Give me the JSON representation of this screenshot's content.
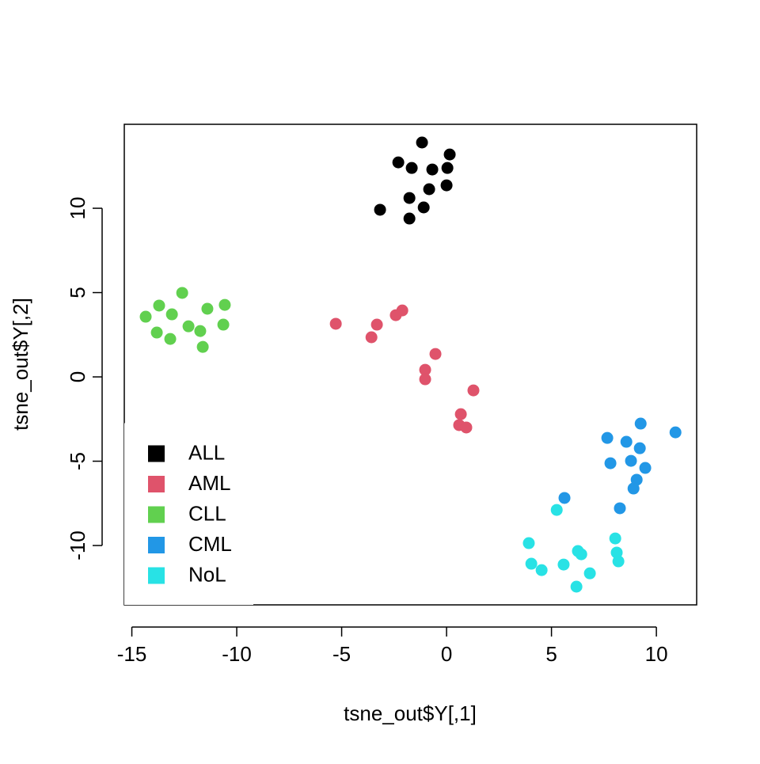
{
  "chart_data": {
    "type": "scatter",
    "x_label": "tsne_out$Y[,1]",
    "y_label": "tsne_out$Y[,2]",
    "xlim": [
      -15.36,
      11.92
    ],
    "ylim": [
      -13.52,
      14.98
    ],
    "xticks": [
      -15,
      -10,
      -5,
      0,
      5,
      10
    ],
    "yticks": [
      -10,
      -5,
      0,
      5,
      10
    ],
    "legend": "bottomleft",
    "series": [
      {
        "name": "ALL",
        "color": "#000000",
        "x": [
          -1.17,
          0.15,
          -2.3,
          -1.66,
          -0.68,
          0.04,
          0.0,
          -0.83,
          -1.77,
          -1.09,
          -3.17,
          -1.77
        ],
        "values": [
          13.9,
          13.19,
          12.72,
          12.39,
          12.3,
          12.39,
          11.36,
          11.13,
          10.61,
          10.05,
          9.91,
          9.39
        ]
      },
      {
        "name": "AML",
        "color": "#DF536B",
        "x": [
          -5.28,
          -3.32,
          -3.58,
          -2.11,
          -2.42,
          -0.53,
          -1.02,
          -1.02,
          1.28,
          0.68,
          0.6,
          0.94
        ],
        "values": [
          3.15,
          3.1,
          2.35,
          3.94,
          3.66,
          1.36,
          0.42,
          -0.14,
          -0.8,
          -2.21,
          -2.86,
          -3.0
        ]
      },
      {
        "name": "CLL",
        "color": "#61D04F",
        "x": [
          -12.6,
          -13.7,
          -10.57,
          -11.4,
          -14.34,
          -13.09,
          -12.3,
          -10.64,
          -13.81,
          -11.74,
          -13.17,
          -11.62
        ],
        "values": [
          4.98,
          4.23,
          4.27,
          4.04,
          3.57,
          3.71,
          3.0,
          3.1,
          2.63,
          2.72,
          2.25,
          1.78
        ]
      },
      {
        "name": "CML",
        "color": "#2297E6",
        "x": [
          9.25,
          10.91,
          7.66,
          8.57,
          9.21,
          7.81,
          8.79,
          9.47,
          9.06,
          8.91,
          5.62,
          8.26
        ],
        "values": [
          -2.77,
          -3.29,
          -3.62,
          -3.85,
          -4.23,
          -5.12,
          -4.98,
          -5.4,
          -6.1,
          -6.62,
          -7.18,
          -7.79
        ]
      },
      {
        "name": "NoL",
        "color": "#28E2E5",
        "x": [
          5.25,
          8.04,
          3.92,
          6.26,
          8.11,
          6.42,
          4.04,
          5.58,
          4.53,
          8.19,
          6.83,
          6.19
        ],
        "values": [
          -7.89,
          -9.58,
          -9.86,
          -10.33,
          -10.42,
          -10.52,
          -11.08,
          -11.13,
          -11.46,
          -10.94,
          -11.65,
          -12.44
        ]
      }
    ]
  }
}
